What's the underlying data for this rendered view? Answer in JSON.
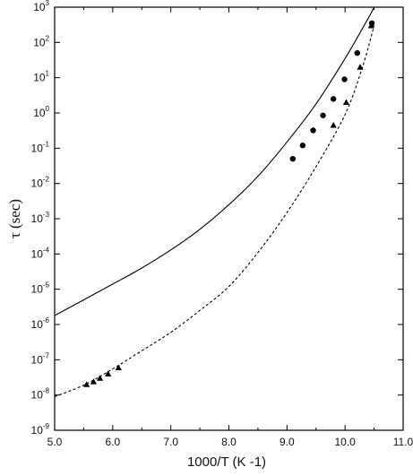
{
  "chart_data": {
    "type": "line",
    "title": "",
    "xlabel": "1000/T (K -1)",
    "ylabel": "τ (sec)",
    "xlim": [
      5.0,
      11.0
    ],
    "ylim_log10": [
      -9,
      3
    ],
    "y_scale": "log",
    "grid": false,
    "x_ticks": [
      "5.0",
      "6.0",
      "7.0",
      "8.0",
      "9.0",
      "10.0",
      "11.0"
    ],
    "y_ticks": [
      {
        "base": "10",
        "exp": "-9"
      },
      {
        "base": "10",
        "exp": "-8"
      },
      {
        "base": "10",
        "exp": "-7"
      },
      {
        "base": "10",
        "exp": "-6"
      },
      {
        "base": "10",
        "exp": "-5"
      },
      {
        "base": "10",
        "exp": "-4"
      },
      {
        "base": "10",
        "exp": "-3"
      },
      {
        "base": "10",
        "exp": "-2"
      },
      {
        "base": "10",
        "exp": "-1"
      },
      {
        "base": "10",
        "exp": "0"
      },
      {
        "base": "10",
        "exp": "1"
      },
      {
        "base": "10",
        "exp": "2"
      },
      {
        "base": "10",
        "exp": "3"
      }
    ],
    "series": [
      {
        "style": "solid-line",
        "x": [
          5.0,
          5.5,
          6.0,
          6.5,
          7.0,
          7.5,
          8.0,
          8.5,
          9.0,
          9.5,
          10.0,
          10.3,
          10.5,
          10.6
        ],
        "y": [
          1.8e-06,
          5e-06,
          1.4e-05,
          4e-05,
          0.00013,
          0.0005,
          0.0025,
          0.016,
          0.15,
          1.8,
          35.0,
          250.0,
          1000.0,
          3000.0
        ]
      },
      {
        "style": "dashed-line",
        "x": [
          5.0,
          5.5,
          6.0,
          6.5,
          7.0,
          7.5,
          8.0,
          8.5,
          9.0,
          9.5,
          10.0,
          10.3,
          10.5
        ],
        "y": [
          9e-09,
          1.9e-08,
          5.5e-08,
          1.8e-07,
          6e-07,
          2.5e-06,
          1.2e-05,
          0.00011,
          0.0015,
          0.03,
          0.9,
          20.0,
          300.0
        ]
      },
      {
        "style": "circles",
        "x": [
          9.1,
          9.27,
          9.45,
          9.62,
          9.8,
          9.99,
          10.21,
          10.46
        ],
        "y": [
          0.05,
          0.12,
          0.32,
          0.85,
          2.5,
          9.0,
          50,
          350
        ]
      },
      {
        "style": "triangles",
        "x": [
          5.55,
          5.67,
          5.78,
          5.92,
          6.1,
          9.8,
          10.02,
          10.26,
          10.45
        ],
        "y": [
          2e-08,
          2.4e-08,
          3e-08,
          4e-08,
          6e-08,
          0.45,
          2.0,
          20,
          300
        ]
      }
    ]
  }
}
